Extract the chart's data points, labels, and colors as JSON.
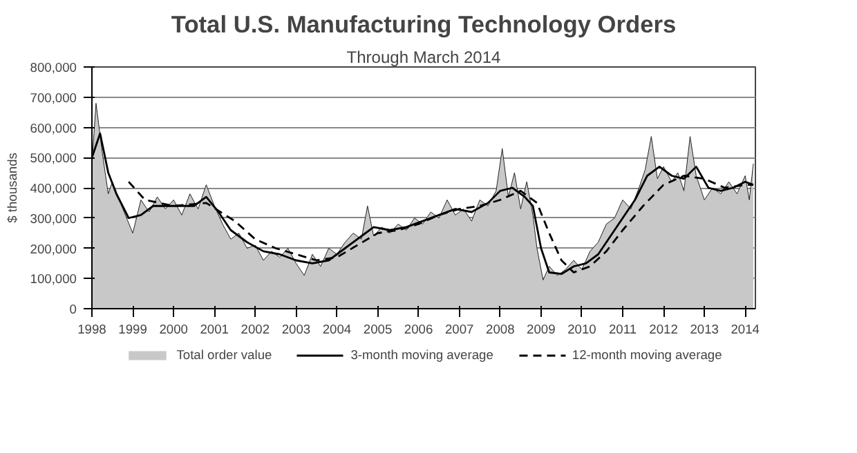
{
  "chart_data": {
    "type": "area",
    "title": "Total U.S. Manufacturing Technology Orders",
    "subtitle": "Through March 2014",
    "ylabel": "$ thousands",
    "xlim": [
      1998,
      2014.25
    ],
    "xticks": [
      1998,
      1999,
      2000,
      2001,
      2002,
      2003,
      2004,
      2005,
      2006,
      2007,
      2008,
      2009,
      2010,
      2011,
      2012,
      2013,
      2014
    ],
    "ylim": [
      0,
      800000
    ],
    "yticks": [
      {
        "value": 0,
        "label": "0"
      },
      {
        "value": 100000,
        "label": "100,000"
      },
      {
        "value": 200000,
        "label": "200,000"
      },
      {
        "value": 300000,
        "label": "300,000"
      },
      {
        "value": 400000,
        "label": "400,000"
      },
      {
        "value": 500000,
        "label": "500,000"
      },
      {
        "value": 600000,
        "label": "600,000"
      },
      {
        "value": 700000,
        "label": "700,000"
      },
      {
        "value": 800000,
        "label": "800,000"
      }
    ],
    "grid": "y",
    "legend": "bottom",
    "marker": "none",
    "series": [
      {
        "name": "Total order value",
        "color": "#c8c8c8",
        "x": [
          1998.0,
          1998.1,
          1998.25,
          1998.4,
          1998.5,
          1998.7,
          1998.85,
          1999.0,
          1999.2,
          1999.4,
          1999.6,
          1999.8,
          2000.0,
          2000.2,
          2000.4,
          2000.6,
          2000.8,
          2001.0,
          2001.2,
          2001.4,
          2001.6,
          2001.8,
          2002.0,
          2002.2,
          2002.4,
          2002.6,
          2002.8,
          2003.0,
          2003.2,
          2003.4,
          2003.6,
          2003.8,
          2004.0,
          2004.2,
          2004.4,
          2004.6,
          2004.75,
          2004.9,
          2005.1,
          2005.3,
          2005.5,
          2005.7,
          2005.9,
          2006.1,
          2006.3,
          2006.5,
          2006.7,
          2006.9,
          2007.1,
          2007.3,
          2007.5,
          2007.7,
          2007.9,
          2008.05,
          2008.2,
          2008.35,
          2008.5,
          2008.65,
          2008.8,
          2008.9,
          2009.05,
          2009.2,
          2009.4,
          2009.6,
          2009.8,
          2010.0,
          2010.2,
          2010.4,
          2010.6,
          2010.8,
          2011.0,
          2011.2,
          2011.4,
          2011.55,
          2011.7,
          2011.85,
          2012.0,
          2012.2,
          2012.35,
          2012.5,
          2012.65,
          2012.8,
          2013.0,
          2013.2,
          2013.4,
          2013.6,
          2013.8,
          2014.0,
          2014.1,
          2014.2
        ],
        "values": [
          480000,
          680000,
          520000,
          380000,
          420000,
          350000,
          300000,
          250000,
          360000,
          320000,
          370000,
          330000,
          360000,
          310000,
          380000,
          330000,
          410000,
          340000,
          280000,
          230000,
          250000,
          200000,
          210000,
          160000,
          190000,
          170000,
          200000,
          150000,
          110000,
          180000,
          140000,
          200000,
          180000,
          220000,
          250000,
          230000,
          340000,
          240000,
          270000,
          250000,
          280000,
          260000,
          300000,
          280000,
          320000,
          300000,
          360000,
          310000,
          330000,
          290000,
          360000,
          340000,
          390000,
          530000,
          370000,
          450000,
          330000,
          420000,
          310000,
          200000,
          95000,
          140000,
          110000,
          130000,
          160000,
          130000,
          190000,
          220000,
          280000,
          300000,
          360000,
          330000,
          400000,
          460000,
          570000,
          430000,
          470000,
          420000,
          450000,
          390000,
          570000,
          440000,
          360000,
          400000,
          380000,
          420000,
          380000,
          440000,
          360000,
          480000
        ]
      },
      {
        "name": "3-month moving average",
        "type": "line",
        "color": "#000000",
        "line_style": "solid",
        "x": [
          1998.0,
          1998.2,
          1998.4,
          1998.6,
          1998.9,
          1999.2,
          1999.5,
          2000.0,
          2000.5,
          2000.8,
          2001.1,
          2001.4,
          2001.8,
          2002.2,
          2002.6,
          2003.0,
          2003.4,
          2003.8,
          2004.2,
          2004.6,
          2004.9,
          2005.3,
          2005.7,
          2006.1,
          2006.5,
          2006.9,
          2007.3,
          2007.7,
          2008.0,
          2008.3,
          2008.6,
          2008.8,
          2009.0,
          2009.2,
          2009.5,
          2009.8,
          2010.1,
          2010.4,
          2010.7,
          2011.0,
          2011.3,
          2011.6,
          2011.9,
          2012.2,
          2012.5,
          2012.8,
          2013.1,
          2013.4,
          2013.7,
          2014.0,
          2014.2
        ],
        "values": [
          500000,
          580000,
          450000,
          380000,
          300000,
          310000,
          340000,
          340000,
          340000,
          370000,
          320000,
          260000,
          220000,
          190000,
          180000,
          160000,
          150000,
          160000,
          200000,
          240000,
          270000,
          260000,
          270000,
          290000,
          310000,
          330000,
          320000,
          350000,
          390000,
          400000,
          370000,
          340000,
          200000,
          120000,
          115000,
          140000,
          150000,
          180000,
          240000,
          300000,
          360000,
          440000,
          470000,
          440000,
          430000,
          470000,
          400000,
          390000,
          400000,
          420000,
          410000
        ]
      },
      {
        "name": "12-month moving average",
        "type": "line",
        "color": "#000000",
        "line_style": "dashed",
        "x": [
          1998.9,
          1999.3,
          2000.0,
          2000.8,
          2001.5,
          2002.0,
          2002.5,
          2003.0,
          2003.5,
          2004.0,
          2004.5,
          2005.0,
          2005.5,
          2006.0,
          2006.5,
          2007.0,
          2007.5,
          2008.0,
          2008.5,
          2008.9,
          2009.2,
          2009.5,
          2009.8,
          2010.2,
          2010.6,
          2011.0,
          2011.5,
          2012.0,
          2012.5,
          2013.0,
          2013.5,
          2014.0,
          2014.2
        ],
        "values": [
          420000,
          360000,
          340000,
          350000,
          290000,
          230000,
          200000,
          180000,
          160000,
          170000,
          210000,
          250000,
          260000,
          280000,
          310000,
          330000,
          340000,
          360000,
          390000,
          350000,
          250000,
          160000,
          120000,
          140000,
          190000,
          260000,
          340000,
          410000,
          440000,
          430000,
          400000,
          410000,
          410000
        ]
      }
    ]
  }
}
